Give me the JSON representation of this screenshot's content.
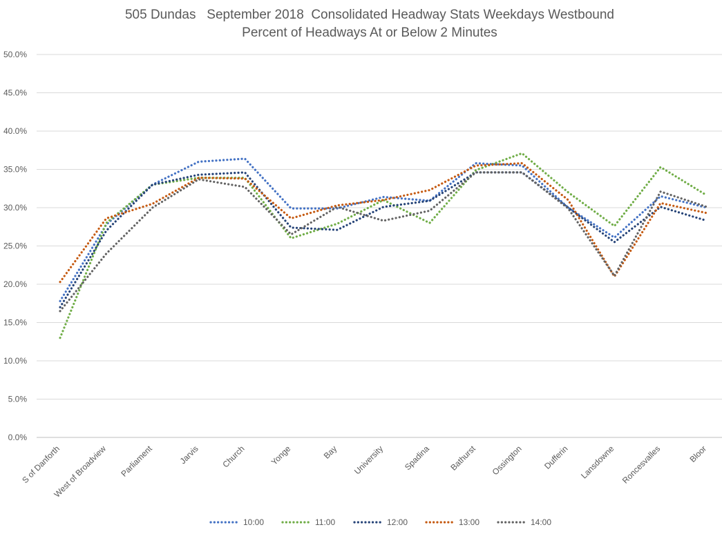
{
  "chart_data": {
    "type": "line",
    "title": "505 Dundas   September 2018  Consolidated Headway Stats Weekdays Westbound",
    "subtitle": "Percent of Headways At or Below 2 Minutes",
    "categories": [
      "S of Danforth",
      "West of Broadview",
      "Parliament",
      "Jarvis",
      "Church",
      "Yonge",
      "Bay",
      "University",
      "Spadina",
      "Bathurst",
      "Ossington",
      "Dufferin",
      "Lansdowne",
      "Roncesvalles",
      "Bloor"
    ],
    "ylim": [
      0,
      50
    ],
    "yticks": [
      0,
      5,
      10,
      15,
      20,
      25,
      30,
      35,
      40,
      45,
      50
    ],
    "ytick_labels": [
      "0.0%",
      "5.0%",
      "10.0%",
      "15.0%",
      "20.0%",
      "25.0%",
      "30.0%",
      "35.0%",
      "40.0%",
      "45.0%",
      "50.0%"
    ],
    "grid": true,
    "legend_position": "bottom",
    "line_style": "dotted",
    "series": [
      {
        "name": "10:00",
        "color": "#4472C4",
        "values": [
          17.8,
          27.8,
          33.0,
          36.0,
          36.4,
          29.9,
          29.9,
          31.4,
          30.9,
          35.8,
          35.5,
          30.0,
          26.1,
          31.5,
          30.0
        ]
      },
      {
        "name": "11:00",
        "color": "#70AD47",
        "values": [
          13.0,
          28.0,
          33.0,
          33.9,
          33.9,
          26.0,
          27.9,
          31.0,
          28.0,
          34.9,
          37.1,
          32.0,
          27.6,
          35.3,
          31.6
        ]
      },
      {
        "name": "12:00",
        "color": "#264478",
        "values": [
          17.0,
          27.0,
          33.0,
          34.3,
          34.6,
          27.4,
          27.1,
          30.1,
          30.9,
          34.6,
          34.6,
          30.0,
          25.5,
          30.1,
          28.3
        ]
      },
      {
        "name": "13:00",
        "color": "#C55A11",
        "values": [
          20.3,
          28.6,
          30.5,
          33.9,
          33.8,
          28.6,
          30.3,
          31.0,
          32.3,
          35.5,
          35.8,
          31.0,
          21.0,
          30.6,
          29.3
        ]
      },
      {
        "name": "14:00",
        "color": "#636363",
        "values": [
          16.5,
          24.0,
          30.0,
          33.7,
          32.7,
          26.5,
          30.1,
          28.3,
          29.6,
          34.6,
          34.6,
          29.9,
          21.1,
          32.1,
          30.1
        ]
      }
    ]
  }
}
